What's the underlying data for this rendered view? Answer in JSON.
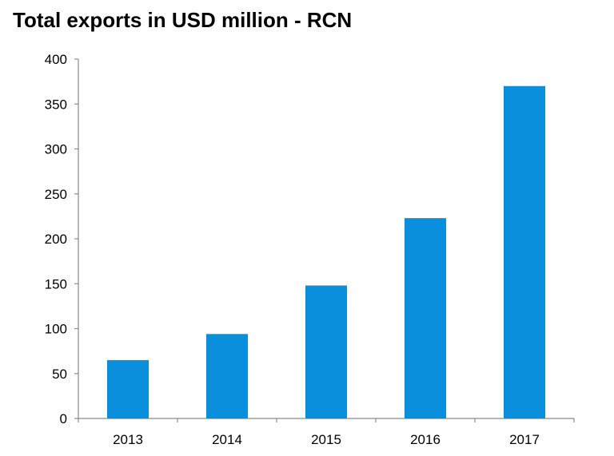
{
  "chart_data": {
    "type": "bar",
    "title": "Total exports in USD million - RCN",
    "xlabel": "",
    "ylabel": "",
    "categories": [
      "2013",
      "2014",
      "2015",
      "2016",
      "2017"
    ],
    "values": [
      65,
      94,
      148,
      223,
      370
    ],
    "ylim": [
      0,
      400
    ],
    "yticks": [
      0,
      50,
      100,
      150,
      200,
      250,
      300,
      350,
      400
    ],
    "grid": false,
    "legend": "none",
    "bar_color": "#0A8FDC",
    "axis_color": "#8C8C8C"
  }
}
